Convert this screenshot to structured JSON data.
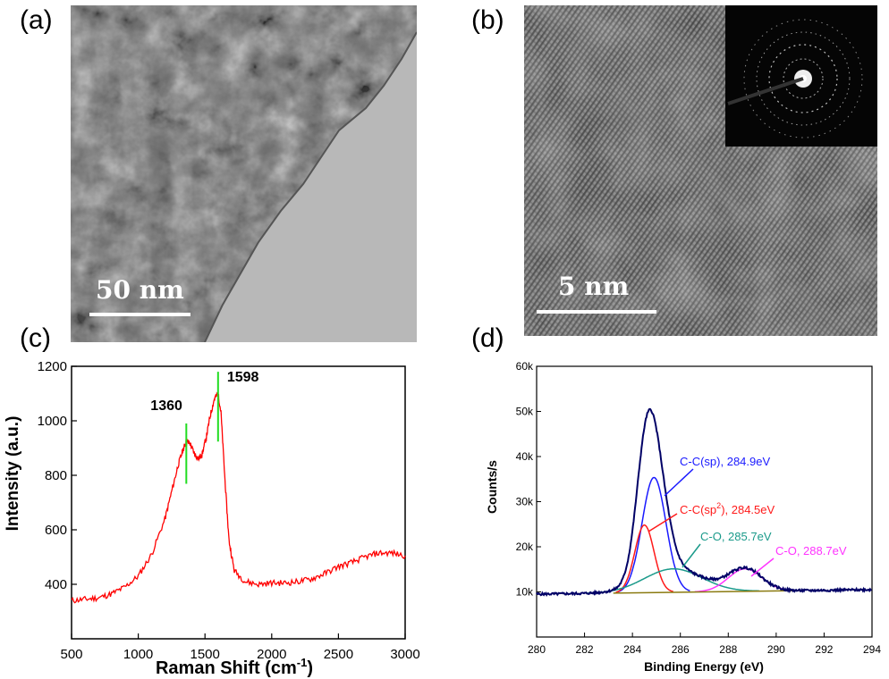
{
  "panels": {
    "a": {
      "label": "(a)",
      "scale_text": "50 nm"
    },
    "b": {
      "label": "(b)",
      "scale_text": "5 nm"
    },
    "c": {
      "label": "(c)"
    },
    "d": {
      "label": "(d)"
    }
  },
  "colors": {
    "raman_line": "#ff0000",
    "peak_marker": "#22dd22",
    "xps_envelope": "#000066",
    "xps_c_sp": "#1a1aff",
    "xps_c_sp2": "#ff1a1a",
    "xps_c_o_1": "#1a9a8a",
    "xps_c_o_2": "#ff33ff",
    "xps_baseline": "#8a7a10"
  },
  "chart_data": [
    {
      "type": "line",
      "xlabel_main": "Raman Shift (cm",
      "xlabel_sup": "-1",
      "xlabel_end": ")",
      "ylabel": "Intensity (a.u.)",
      "xlim": [
        500,
        3000
      ],
      "ylim": [
        200,
        1200
      ],
      "x_ticks": [
        "500",
        "1000",
        "1500",
        "2000",
        "2500",
        "3000"
      ],
      "y_ticks": [
        "400",
        "600",
        "800",
        "1000",
        "1200"
      ],
      "annotations": [
        "1360",
        "1598"
      ],
      "series": [
        {
          "x": [
            500,
            600,
            700,
            800,
            900,
            1000,
            1100,
            1200,
            1250,
            1300,
            1340,
            1360,
            1390,
            1420,
            1450,
            1480,
            1510,
            1540,
            1570,
            1598,
            1620,
            1650,
            1680,
            1720,
            1800,
            1900,
            2000,
            2100,
            2200,
            2300,
            2400,
            2500,
            2600,
            2700,
            2800,
            2900,
            3000
          ],
          "y": [
            340,
            345,
            350,
            365,
            390,
            430,
            510,
            640,
            740,
            840,
            900,
            925,
            915,
            880,
            860,
            880,
            940,
            1020,
            1080,
            1100,
            1030,
            780,
            560,
            450,
            410,
            400,
            405,
            405,
            410,
            420,
            440,
            465,
            480,
            500,
            515,
            515,
            505
          ]
        }
      ]
    },
    {
      "type": "line",
      "xlabel": "Binding Energy (eV)",
      "ylabel": "Counts/s",
      "xlim": [
        280,
        294
      ],
      "ylim": [
        0,
        60000
      ],
      "x_ticks": [
        "280",
        "282",
        "284",
        "286",
        "288",
        "290",
        "292",
        "294"
      ],
      "y_ticks": [
        "10k",
        "20k",
        "30k",
        "40k",
        "50k",
        "60k"
      ],
      "annotations": [
        {
          "text": "C-C(sp), 284.9eV"
        },
        {
          "text_main": "C-C(sp",
          "text_sup": "2",
          "text_end": "), 284.5eV"
        },
        {
          "text": "C-O, 285.7eV"
        },
        {
          "text": "C-O, 288.7eV"
        }
      ],
      "series": [
        {
          "center": 284.9,
          "height": 25500,
          "width": 0.5
        },
        {
          "center": 284.5,
          "height": 15000,
          "width": 0.4
        },
        {
          "center": 285.7,
          "height": 5200,
          "width": 1.2
        },
        {
          "center": 288.7,
          "height": 5000,
          "width": 0.7
        }
      ],
      "baseline": {
        "start": 9500,
        "end": 10500
      }
    }
  ]
}
